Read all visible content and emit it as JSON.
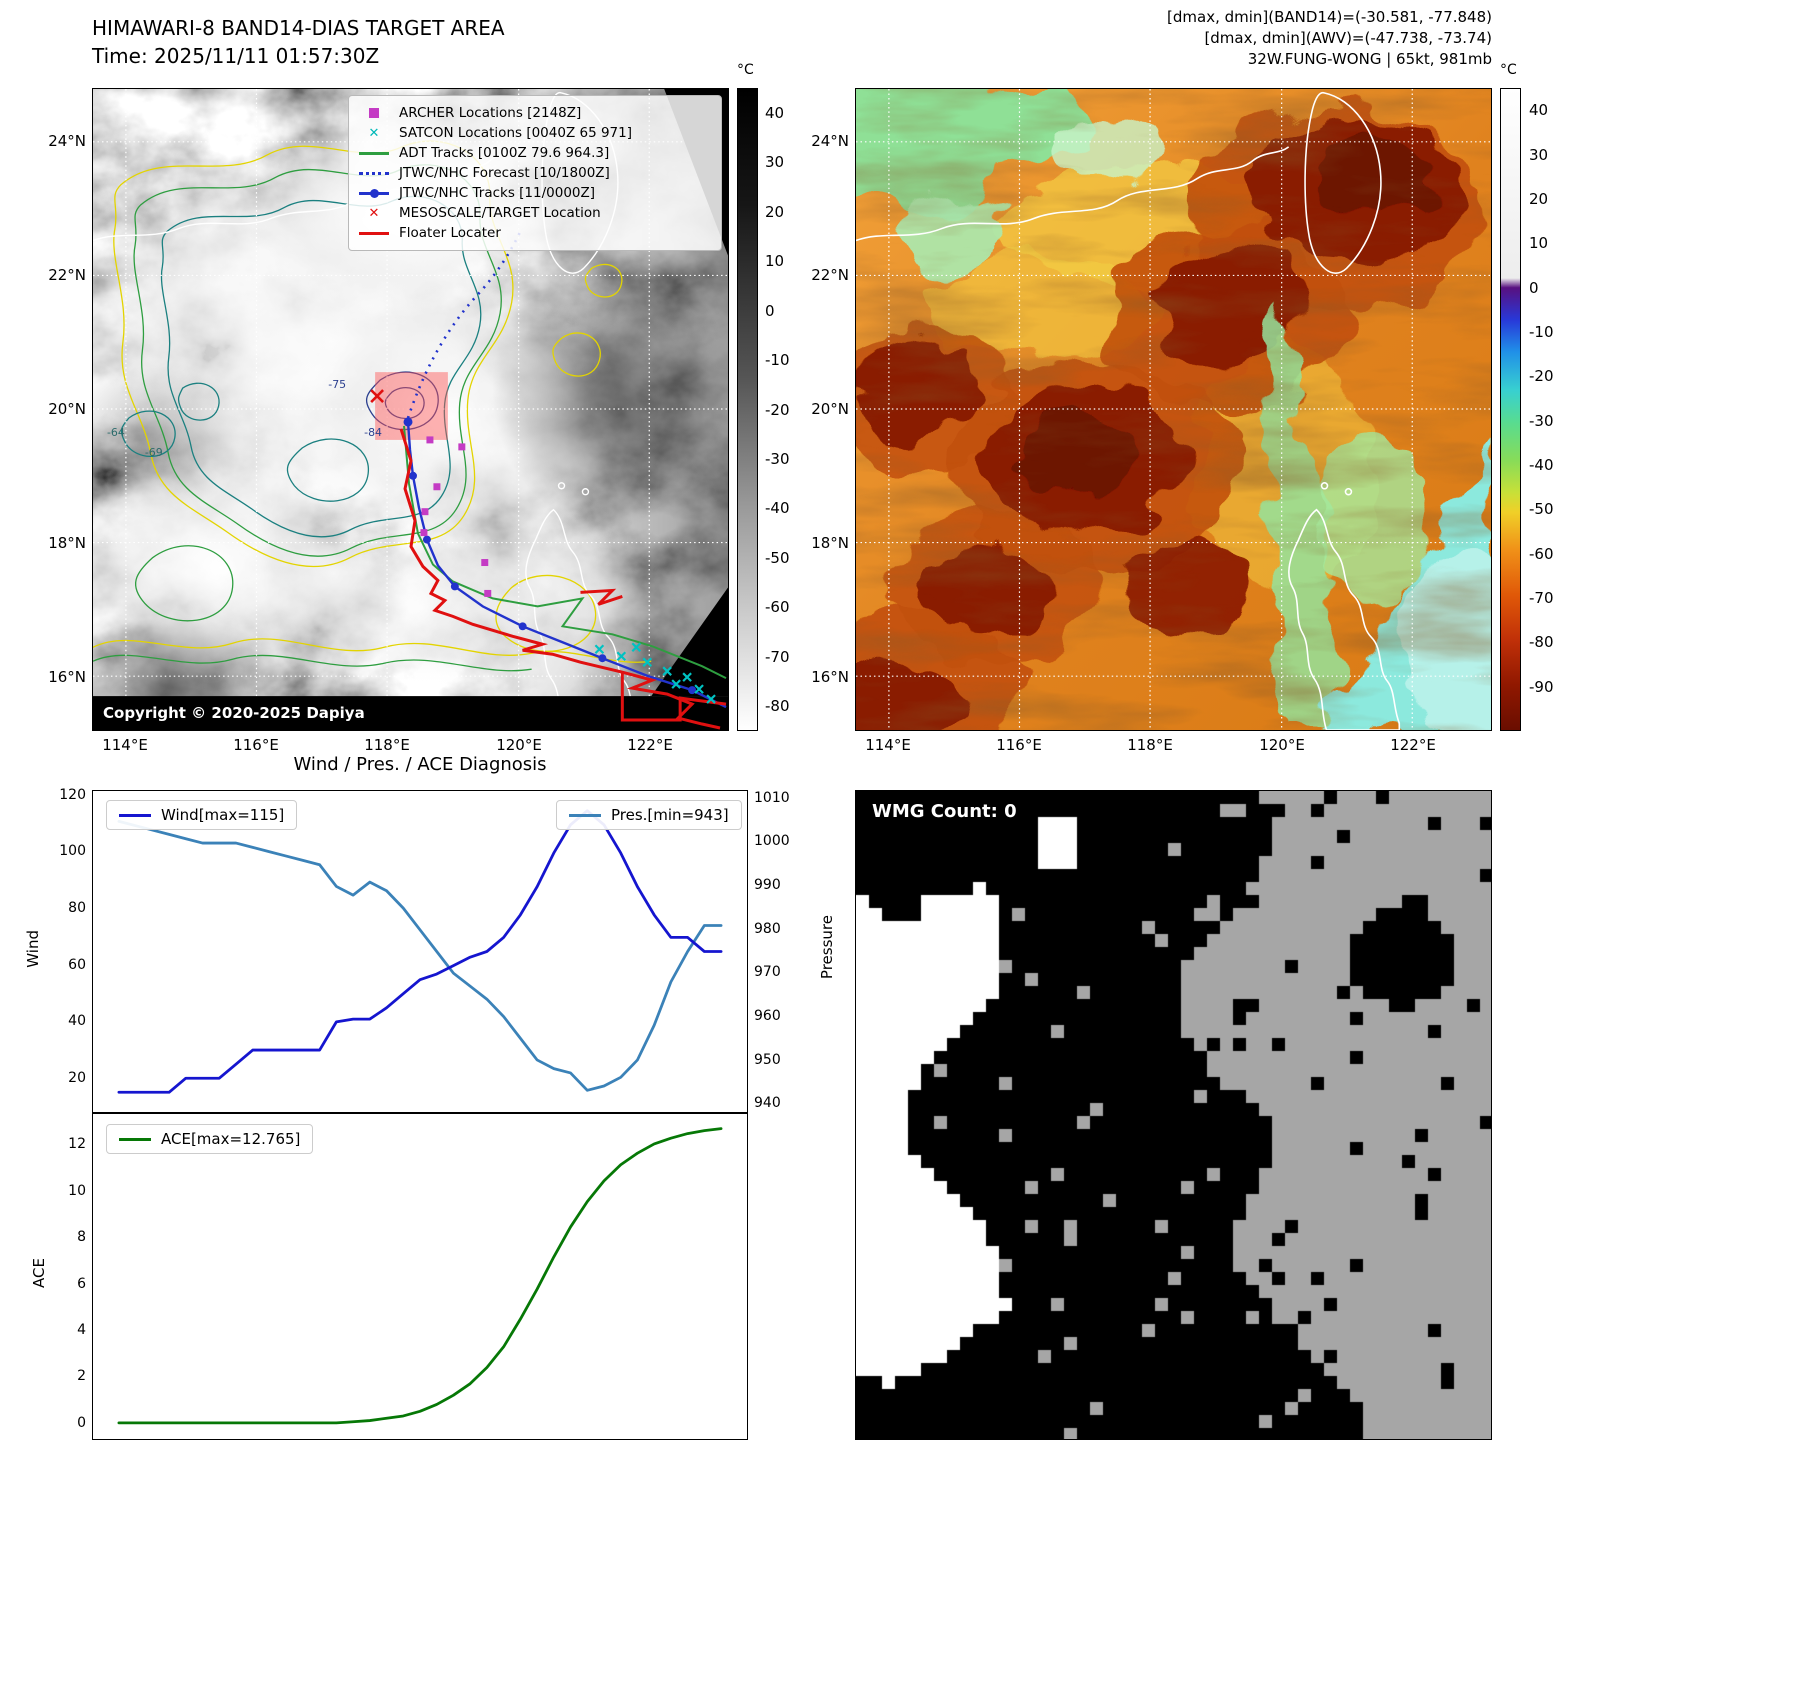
{
  "panel_band14": {
    "title": "HIMAWARI-8 BAND14-DIAS TARGET AREA",
    "subtitle": "Time: 2025/11/11 01:57:30Z",
    "copyright": "Copyright © 2020-2025 Dapiya",
    "x_ticks": [
      "114°E",
      "116°E",
      "118°E",
      "120°E",
      "122°E"
    ],
    "y_ticks": [
      "24°N",
      "22°N",
      "20°N",
      "18°N",
      "16°N"
    ],
    "colorbar": {
      "label": "°C",
      "ticks": [
        40,
        30,
        20,
        10,
        0,
        -10,
        -20,
        -30,
        -40,
        -50,
        -60,
        -70,
        -80
      ],
      "vmax": 45,
      "vmin": -85
    },
    "contour_labels": [
      "-64",
      "-69",
      "-75",
      "-84"
    ],
    "legend": [
      {
        "label": "ARCHER Locations [2148Z]",
        "marker": "square",
        "color": "#c43bc4"
      },
      {
        "label": "SATCON Locations [0040Z 65 971]",
        "marker": "x",
        "color": "#00b8b8"
      },
      {
        "label": "ADT Tracks [0100Z 79.6 964.3]",
        "marker": "line",
        "color": "#2e9e40"
      },
      {
        "label": "JTWC/NHC Forecast [10/1800Z]",
        "marker": "dotted",
        "color": "#2233cc"
      },
      {
        "label": "JTWC/NHC Tracks [11/0000Z]",
        "marker": "line-dot",
        "color": "#2233cc"
      },
      {
        "label": "MESOSCALE/TARGET Location",
        "marker": "x",
        "color": "#e01010"
      },
      {
        "label": "Floater Locater",
        "marker": "line",
        "color": "#e01010"
      }
    ]
  },
  "panel_awv": {
    "header_lines": [
      "[dmax, dmin](BAND14)=(-30.581, -77.848)",
      "[dmax, dmin](AWV)=(-47.738, -73.74)",
      "32W.FUNG-WONG | 65kt, 981mb"
    ],
    "x_ticks": [
      "114°E",
      "116°E",
      "118°E",
      "120°E",
      "122°E"
    ],
    "y_ticks": [
      "24°N",
      "22°N",
      "20°N",
      "18°N",
      "16°N"
    ],
    "colorbar": {
      "label": "°C",
      "ticks": [
        40,
        30,
        20,
        10,
        0,
        -10,
        -20,
        -30,
        -40,
        -50,
        -60,
        -70,
        -80,
        -90
      ],
      "vmax": 45,
      "vmin": -100
    }
  },
  "diagnosis": {
    "title": "Wind / Pres. / ACE Diagnosis"
  },
  "wmg": {
    "label": "WMG Count: 0"
  },
  "chart_data": [
    {
      "type": "line",
      "title": "Wind / Pres. / ACE Diagnosis",
      "x_note": "time steps, x axis unlabeled",
      "left_ylabel": "Wind",
      "right_ylabel": "Pressure",
      "left_ylim": [
        8,
        122
      ],
      "right_ylim": [
        938,
        1012
      ],
      "left_ticks": [
        120,
        100,
        80,
        60,
        40,
        20
      ],
      "right_ticks": [
        1010,
        1000,
        990,
        980,
        970,
        960,
        950,
        940
      ],
      "series": [
        {
          "name": "Wind",
          "legend": "Wind[max=115]",
          "color": "#1515cf",
          "axis": "left",
          "max": 115,
          "values": [
            15,
            15,
            15,
            15,
            20,
            20,
            20,
            25,
            30,
            30,
            30,
            30,
            30,
            40,
            41,
            41,
            45,
            50,
            55,
            57,
            60,
            63,
            65,
            70,
            78,
            88,
            100,
            110,
            115,
            110,
            100,
            88,
            78,
            70,
            70,
            65,
            65
          ]
        },
        {
          "name": "Pres.",
          "legend": "Pres.[min=943]",
          "color": "#3b82b8",
          "axis": "right",
          "min": 943,
          "values": [
            1005,
            1004,
            1003,
            1002,
            1001,
            1000,
            1000,
            1000,
            999,
            998,
            997,
            996,
            995,
            990,
            988,
            991,
            989,
            985,
            980,
            975,
            970,
            967,
            964,
            960,
            955,
            950,
            948,
            947,
            943,
            944,
            946,
            950,
            958,
            968,
            975,
            981,
            981
          ]
        }
      ]
    },
    {
      "type": "line",
      "ylabel": "ACE",
      "ylim": [
        -0.7,
        13.4
      ],
      "yticks": [
        12,
        10,
        8,
        6,
        4,
        2,
        0
      ],
      "series": [
        {
          "name": "ACE",
          "legend": "ACE[max=12.765]",
          "color": "#067806",
          "max": 12.765,
          "values": [
            0,
            0,
            0,
            0,
            0,
            0,
            0,
            0,
            0,
            0,
            0,
            0,
            0,
            0,
            0.05,
            0.1,
            0.2,
            0.3,
            0.5,
            0.8,
            1.2,
            1.7,
            2.4,
            3.3,
            4.5,
            5.8,
            7.2,
            8.5,
            9.6,
            10.5,
            11.2,
            11.7,
            12.1,
            12.35,
            12.55,
            12.68,
            12.765
          ]
        }
      ]
    }
  ]
}
